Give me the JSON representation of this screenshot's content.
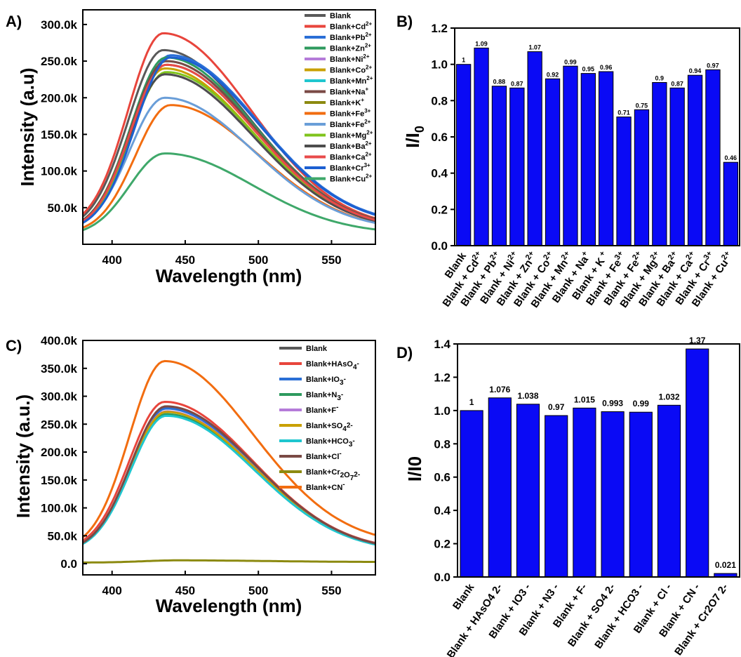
{
  "chart_data": [
    {
      "panel": "A)",
      "type": "line",
      "xlabel": "Wavelength (nm)",
      "ylabel": "Intensity (a.u)",
      "xlim": [
        380,
        580
      ],
      "ylim": [
        0,
        320000
      ],
      "xticks": [
        400,
        450,
        500,
        550
      ],
      "yticks": [
        50000,
        100000,
        150000,
        200000,
        250000,
        300000
      ],
      "ytick_labels": [
        "50.0k",
        "100.0k",
        "150.0k",
        "200.0k",
        "250.0k",
        "300.0k"
      ],
      "legend_position": "top-right",
      "series": [
        {
          "name": "Blank",
          "legend": [
            "Blank",
            ""
          ],
          "color": "#595959",
          "peak": 265000,
          "peak_x": 435,
          "start": 20000,
          "end": 22000
        },
        {
          "name": "Blank+Cd2+",
          "legend": [
            "Blank+Cd",
            "2+"
          ],
          "color": "#e8453c",
          "peak": 288000,
          "peak_x": 435,
          "start": 22000,
          "end": 21000
        },
        {
          "name": "Blank+Pb2+",
          "legend": [
            "Blank+Pb",
            "2+"
          ],
          "color": "#2a6fd6",
          "peak": 258000,
          "peak_x": 440,
          "start": 20000,
          "end": 26000
        },
        {
          "name": "Blank+Zn2+",
          "legend": [
            "Blank+Zn",
            "2+"
          ],
          "color": "#2e9a5e",
          "peak": 255000,
          "peak_x": 437,
          "start": 19000,
          "end": 20000
        },
        {
          "name": "Blank+Ni2+",
          "legend": [
            "Blank+Ni",
            "2+"
          ],
          "color": "#b57bd9",
          "peak": 232000,
          "peak_x": 436,
          "start": 18000,
          "end": 20000
        },
        {
          "name": "Blank+Co2+",
          "legend": [
            "Blank+Co",
            "2+"
          ],
          "color": "#c9a000",
          "peak": 240000,
          "peak_x": 436,
          "start": 18000,
          "end": 20000
        },
        {
          "name": "Blank+Mn2+",
          "legend": [
            "Blank+Mn",
            "2+"
          ],
          "color": "#1fc6cf",
          "peak": 250000,
          "peak_x": 437,
          "start": 19000,
          "end": 21000
        },
        {
          "name": "Blank+Na+",
          "legend": [
            "Blank+Na",
            "+"
          ],
          "color": "#7a4a45",
          "peak": 250000,
          "peak_x": 437,
          "start": 19000,
          "end": 21000
        },
        {
          "name": "Blank+K+",
          "legend": [
            "Blank+K",
            "+"
          ],
          "color": "#8c8a10",
          "peak": 245000,
          "peak_x": 437,
          "start": 18000,
          "end": 20000
        },
        {
          "name": "Blank+Fe3+",
          "legend": [
            "Blank+Fe",
            "3+"
          ],
          "color": "#f26d10",
          "peak": 190000,
          "peak_x": 440,
          "start": 15000,
          "end": 18000
        },
        {
          "name": "Blank+Fe2+",
          "legend": [
            "Blank+Fe",
            "2+"
          ],
          "color": "#6a9ed8",
          "peak": 200000,
          "peak_x": 436,
          "start": 17000,
          "end": 19000
        },
        {
          "name": "Blank+Mg2+",
          "legend": [
            "Blank+Mg",
            "2+"
          ],
          "color": "#7fc41c",
          "peak": 235000,
          "peak_x": 437,
          "start": 18000,
          "end": 20000
        },
        {
          "name": "Blank+Ba2+",
          "legend": [
            "Blank+Ba",
            "2+"
          ],
          "color": "#4d4d4d",
          "peak": 232000,
          "peak_x": 436,
          "start": 18000,
          "end": 20000
        },
        {
          "name": "Blank+Ca2+",
          "legend": [
            "Blank+Ca",
            "2+"
          ],
          "color": "#e84a4a",
          "peak": 245000,
          "peak_x": 437,
          "start": 18000,
          "end": 20000
        },
        {
          "name": "Blank+Cr3+",
          "legend": [
            "Blank+Cr",
            "3+"
          ],
          "color": "#1c5fd1",
          "peak": 255000,
          "peak_x": 440,
          "start": 19000,
          "end": 25000
        },
        {
          "name": "Blank+Cu2+",
          "legend": [
            "Blank+Cu",
            "2+"
          ],
          "color": "#3fa86a",
          "peak": 124000,
          "peak_x": 436,
          "start": 12000,
          "end": 14000
        }
      ]
    },
    {
      "panel": "B)",
      "type": "bar",
      "ylabel": "I/I0",
      "ylim": [
        0,
        1.2
      ],
      "yticks": [
        "0.0",
        "0.2",
        "0.4",
        "0.6",
        "0.8",
        "1.0",
        "1.2"
      ],
      "bar_color": "#0a0af5",
      "categories": [
        "Blank",
        "Blank + Cd2+",
        "Blank + Pb2+",
        "Blank + Ni2+",
        "Blank + Zn2+",
        "Blank + Co2+",
        "Blank + Mn2+",
        "Blank + Na+",
        "Blank + K+",
        "Blank + Fe3+",
        "Blank + Fe2+",
        "Blank + Mg2+",
        "Blank + Ba2+",
        "Blank + Ca2+",
        "Blank + Cr3+",
        "Blank + Cu2+"
      ],
      "category_labels": [
        [
          "Blank",
          ""
        ],
        [
          "Blank + Cd",
          "2+"
        ],
        [
          "Blank + Pb",
          "2+"
        ],
        [
          "Blank + Ni",
          "2+"
        ],
        [
          "Blank + Zn",
          "2+"
        ],
        [
          "Blank + Co",
          "2+"
        ],
        [
          "Blank + Mn",
          "2+"
        ],
        [
          "Blank + Na",
          "+"
        ],
        [
          "Blank + K",
          " +"
        ],
        [
          "Blank + Fe",
          "3+"
        ],
        [
          "Blank + Fe",
          "2+"
        ],
        [
          "Blank + Mg",
          "2+"
        ],
        [
          "Blank + Ba",
          "2+"
        ],
        [
          "Blank + Ca",
          "2+"
        ],
        [
          "Blank + Cr",
          "3+"
        ],
        [
          "Blank + Cu",
          "2+"
        ]
      ],
      "values": [
        1,
        1.09,
        0.88,
        0.87,
        1.07,
        0.92,
        0.99,
        0.95,
        0.96,
        0.71,
        0.75,
        0.9,
        0.87,
        0.94,
        0.97,
        0.46
      ],
      "value_labels": [
        "1",
        "1.09",
        "0.88",
        "0.87",
        "1.07",
        "0.92",
        "0.99",
        "0.95",
        "0.96",
        "0.71",
        "0.75",
        "0.9",
        "0.87",
        "0.94",
        "0.97",
        "0.46"
      ]
    },
    {
      "panel": "C)",
      "type": "line",
      "xlabel": "Wavelength (nm)",
      "ylabel": "Intensity (a.u.)",
      "xlim": [
        380,
        580
      ],
      "ylim": [
        -20000,
        400000
      ],
      "xticks": [
        400,
        450,
        500,
        550
      ],
      "yticks": [
        0,
        50000,
        100000,
        150000,
        200000,
        250000,
        300000,
        350000,
        400000
      ],
      "ytick_labels": [
        "0.0",
        "50.0k",
        "100.0k",
        "150.0k",
        "200.0k",
        "250.0k",
        "300.0k",
        "350.0k",
        "400.0k"
      ],
      "legend_position": "top-right",
      "series": [
        {
          "name": "Blank",
          "legend": [
            "Blank",
            "",
            ""
          ],
          "color": "#595959",
          "peak": 280000,
          "peak_x": 437,
          "start": 22000,
          "end": 22000
        },
        {
          "name": "Blank+HAsO4-",
          "legend": [
            "Blank+HAsO",
            "4",
            "-"
          ],
          "color": "#e8453c",
          "peak": 290000,
          "peak_x": 436,
          "start": 24000,
          "end": 22000
        },
        {
          "name": "Blank+IO3-",
          "legend": [
            "Blank+IO",
            "3",
            "-"
          ],
          "color": "#2a6fd6",
          "peak": 278000,
          "peak_x": 437,
          "start": 22000,
          "end": 21000
        },
        {
          "name": "Blank+N3-",
          "legend": [
            "Blank+N",
            "3",
            "-"
          ],
          "color": "#2e9a5e",
          "peak": 268000,
          "peak_x": 437,
          "start": 21000,
          "end": 20000
        },
        {
          "name": "Blank+F-",
          "legend": [
            "Blank+F",
            "",
            "-"
          ],
          "color": "#b57bd9",
          "peak": 273000,
          "peak_x": 437,
          "start": 21000,
          "end": 20000
        },
        {
          "name": "Blank+SO42-",
          "legend": [
            "Blank+SO",
            "4",
            "2-"
          ],
          "color": "#c9a000",
          "peak": 272000,
          "peak_x": 437,
          "start": 21000,
          "end": 20000
        },
        {
          "name": "Blank+HCO3-",
          "legend": [
            "Blank+HCO",
            "3",
            "-"
          ],
          "color": "#1fc6cf",
          "peak": 265000,
          "peak_x": 437,
          "start": 21000,
          "end": 20000
        },
        {
          "name": "Blank+Cl-",
          "legend": [
            "Blank+Cl",
            "",
            "-"
          ],
          "color": "#7a4a45",
          "peak": 282000,
          "peak_x": 437,
          "start": 22000,
          "end": 21000
        },
        {
          "name": "Blank+Cr2O72-",
          "legend": [
            "Blank+Cr",
            "2",
            "O",
            "7",
            "2-"
          ],
          "color": "#8c8a10",
          "peak": 6000,
          "peak_x": 445,
          "start": 2000,
          "end": 3000
        },
        {
          "name": "Blank+CN-",
          "legend": [
            "Blank+CN",
            "",
            "-"
          ],
          "color": "#f26d10",
          "peak": 363000,
          "peak_x": 436,
          "start": 25000,
          "end": 33000
        }
      ]
    },
    {
      "panel": "D)",
      "type": "bar",
      "ylabel": "I/I0",
      "ylim": [
        0,
        1.4
      ],
      "yticks": [
        "0.0",
        "0.2",
        "0.4",
        "0.6",
        "0.8",
        "1.0",
        "1.2",
        "1.4"
      ],
      "bar_color": "#0a0af5",
      "categories": [
        "Blank",
        "Blank + HAsO4 2-",
        "Blank + IO3 -",
        "Blank + N3 -",
        "Blank + F-",
        "Blank + SO4 2-",
        "Blank + HCO3 -",
        "Blank + Cl -",
        "Blank + CN -",
        "Blank + Cr2O7 2-"
      ],
      "values": [
        1,
        1.076,
        1.038,
        0.97,
        1.015,
        0.993,
        0.99,
        1.032,
        1.37,
        0.021
      ],
      "value_labels": [
        "1",
        "1.076",
        "1.038",
        "0.97",
        "1.015",
        "0.993",
        "0.99",
        "1.032",
        "1.37",
        "0.021"
      ]
    }
  ]
}
